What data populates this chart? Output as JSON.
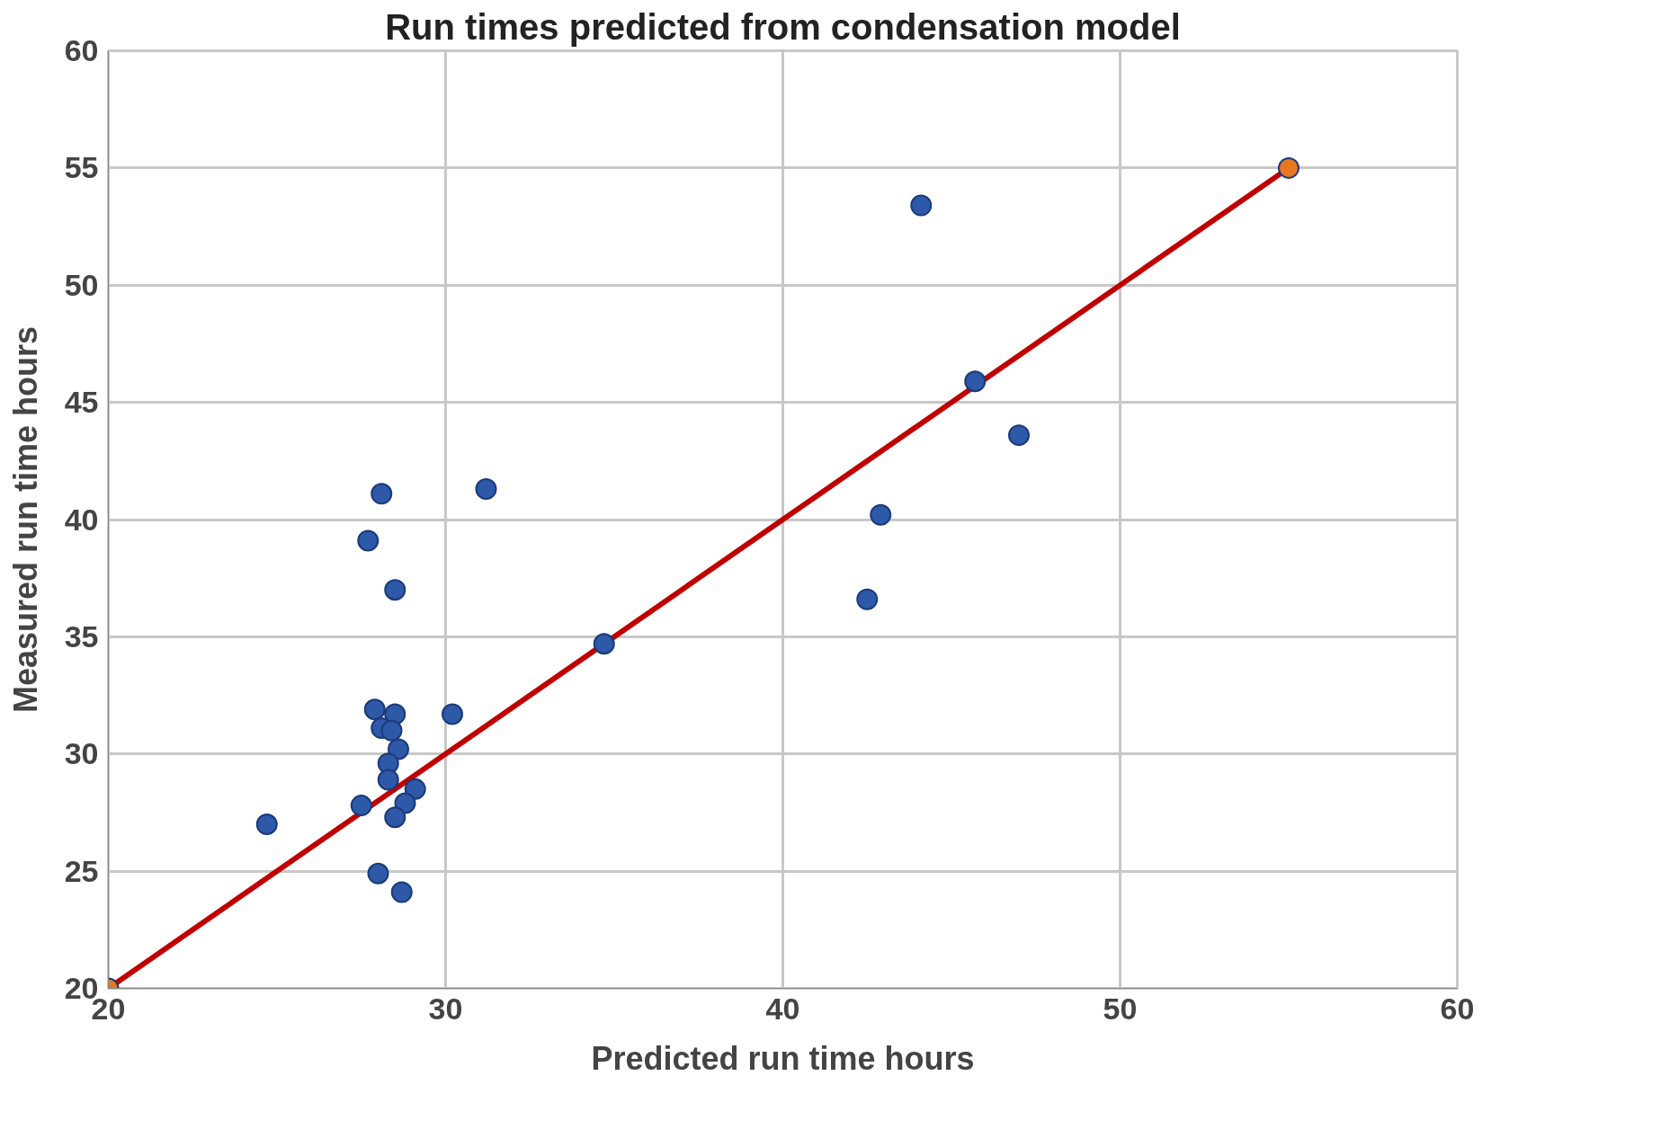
{
  "chart_data": {
    "type": "scatter",
    "title": "Run times predicted from condensation model",
    "xlabel": "Predicted run time hours",
    "ylabel": "Measured run time hours",
    "xlim": [
      20,
      60
    ],
    "ylim": [
      20,
      60
    ],
    "xticks": [
      20,
      30,
      40,
      50,
      60
    ],
    "yticks": [
      20,
      25,
      30,
      35,
      40,
      45,
      50,
      55,
      60
    ],
    "grid": true,
    "marker": "circle",
    "series": [
      {
        "color": "#2e59a8",
        "x": [
          44.1,
          45.7,
          47.0,
          42.9,
          42.5,
          34.7,
          31.2,
          30.2,
          28.1,
          27.7,
          28.5,
          24.7,
          27.5,
          28.0,
          28.7,
          27.9,
          28.5,
          28.1,
          28.4,
          28.6,
          28.3,
          28.3,
          29.1,
          28.8,
          28.5
        ],
        "values": [
          53.4,
          45.9,
          43.6,
          40.2,
          36.6,
          34.7,
          41.3,
          31.7,
          41.1,
          39.1,
          37.0,
          27.0,
          27.8,
          24.9,
          24.1,
          31.9,
          31.7,
          31.1,
          31.0,
          30.2,
          29.6,
          28.9,
          28.5,
          27.9,
          27.3
        ]
      },
      {
        "type": "line",
        "marker": "none",
        "color": "#c00000",
        "x": [
          20,
          55
        ],
        "values": [
          20,
          55
        ]
      },
      {
        "color": "#e87722",
        "x": [
          20,
          55
        ],
        "values": [
          20,
          55
        ]
      }
    ]
  }
}
